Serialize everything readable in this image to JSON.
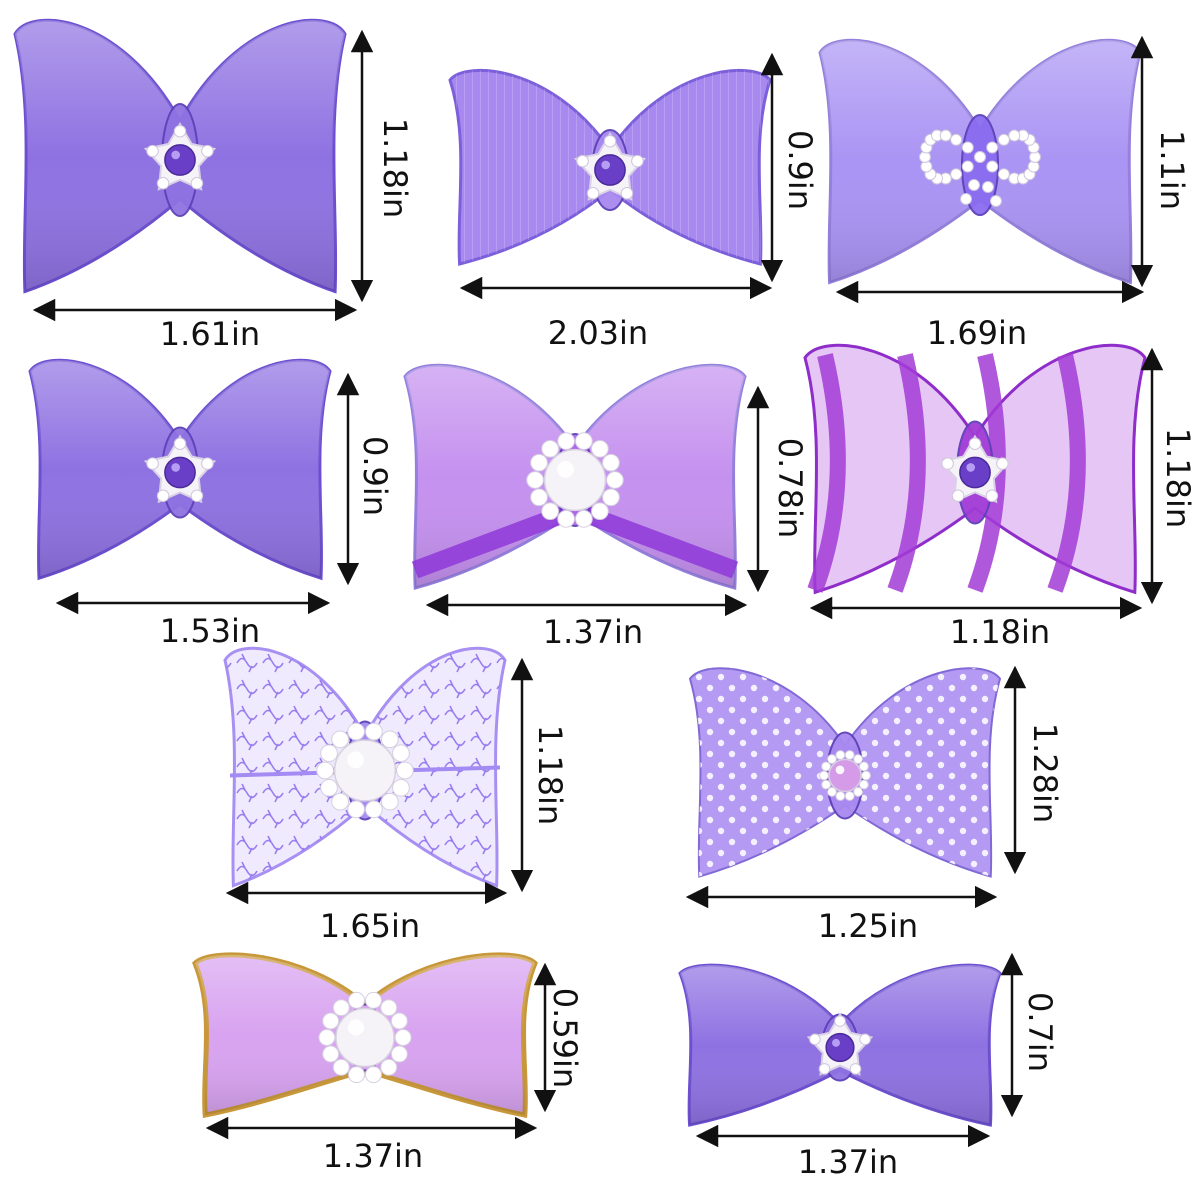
{
  "colors": {
    "lavender": "#8f72e2",
    "lavender_dark": "#6c4fd0",
    "light_purple": "#a889f0",
    "sheer_purple": "#8a6cf0",
    "orchid": "#b067ea",
    "magenta": "#a23bd6",
    "lace": "#a48bf3",
    "pink_satin": "#d8a3f0",
    "gold_edge": "#c8973a",
    "pearl": "#f6f3f8",
    "gem": "#6a3fc7",
    "ink": "#111111"
  },
  "bows": [
    {
      "id": "bow-1",
      "style": "satin",
      "center": "star-gem",
      "width_label": "1.61in",
      "height_label": "1.18in"
    },
    {
      "id": "bow-2",
      "style": "grosgrain",
      "center": "star-gem",
      "width_label": "2.03in",
      "height_label": "0.9in"
    },
    {
      "id": "bow-3",
      "style": "organza",
      "center": "pearl-loop",
      "width_label": "1.69in",
      "height_label": "1.1in"
    },
    {
      "id": "bow-4",
      "style": "satin",
      "center": "star-gem",
      "width_label": "1.53in",
      "height_label": "0.9in"
    },
    {
      "id": "bow-5",
      "style": "organza-edged",
      "center": "pearl",
      "width_label": "1.37in",
      "height_label": "0.78in"
    },
    {
      "id": "bow-6",
      "style": "striped",
      "center": "star-gem",
      "width_label": "1.18in",
      "height_label": "1.18in"
    },
    {
      "id": "bow-7",
      "style": "lace",
      "center": "pearl",
      "width_label": "1.65in",
      "height_label": "1.18in"
    },
    {
      "id": "bow-8",
      "style": "polka-dot",
      "center": "pink-pearl",
      "width_label": "1.25in",
      "height_label": "1.28in"
    },
    {
      "id": "bow-9",
      "style": "satin-gold-edge",
      "center": "pearl",
      "width_label": "1.37in",
      "height_label": "0.59in"
    },
    {
      "id": "bow-10",
      "style": "satin",
      "center": "star-gem",
      "width_label": "1.37in",
      "height_label": "0.7in"
    }
  ]
}
